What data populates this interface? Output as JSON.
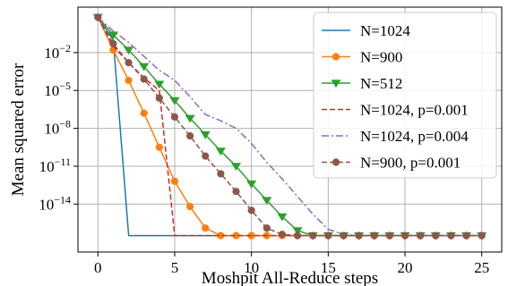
{
  "chart_data": {
    "type": "line",
    "xlabel": "Moshpit All-Reduce steps",
    "ylabel": "Mean squared error",
    "xscale": "linear",
    "yscale": "log",
    "xlim": [
      -1.3,
      26.3
    ],
    "ylim_log10": [
      -17.8,
      1.6
    ],
    "x_ticks": [
      0,
      5,
      10,
      15,
      20,
      25
    ],
    "x_tick_labels": [
      "0",
      "5",
      "10",
      "15",
      "20",
      "25"
    ],
    "y_ticks_log10": [
      -2,
      -5,
      -8,
      -11,
      -14
    ],
    "y_tick_labels": [
      {
        "base": "10",
        "exp": "−2"
      },
      {
        "base": "10",
        "exp": "−5"
      },
      {
        "base": "10",
        "exp": "−8"
      },
      {
        "base": "10",
        "exp": "−11"
      },
      {
        "base": "10",
        "exp": "−14"
      }
    ],
    "grid": true,
    "legend_position": "upper right",
    "series": [
      {
        "name": "N=1024",
        "color": "#1f77b4",
        "dash": "solid",
        "marker": "none",
        "x": [
          0,
          1,
          2,
          3,
          4,
          5,
          6,
          7,
          8,
          9,
          10,
          11,
          12,
          13,
          14,
          15,
          16,
          17,
          18,
          19,
          20,
          21,
          22,
          23,
          24,
          25
        ],
        "y_log10": [
          0.8,
          -1.0,
          -16.5,
          -16.5,
          -16.5,
          -16.5,
          -16.5,
          -16.5,
          -16.5,
          -16.5,
          -16.5,
          -16.5,
          -16.5,
          -16.5,
          -16.5,
          -16.5,
          -16.5,
          -16.5,
          -16.5,
          -16.5,
          -16.5,
          -16.5,
          -16.5,
          -16.5,
          -16.5,
          -16.5
        ]
      },
      {
        "name": "N=900",
        "color": "#ff7f0e",
        "dash": "solid",
        "marker": "circle",
        "x": [
          0,
          1,
          2,
          3,
          4,
          5,
          6,
          7,
          8,
          9,
          10,
          11,
          12,
          13,
          14,
          15,
          16,
          17,
          18,
          19,
          20,
          21,
          22,
          23,
          24,
          25
        ],
        "y_log10": [
          0.8,
          -1.8,
          -4.2,
          -6.8,
          -9.5,
          -12.2,
          -14.2,
          -15.9,
          -16.5,
          -16.5,
          -16.5,
          -16.5,
          -16.5,
          -16.5,
          -16.5,
          -16.5,
          -16.5,
          -16.5,
          -16.5,
          -16.5,
          -16.5,
          -16.5,
          -16.5,
          -16.5,
          -16.5,
          -16.5
        ]
      },
      {
        "name": "N=512",
        "color": "#2ca02c",
        "dash": "solid",
        "marker": "triangle-down",
        "x": [
          0,
          1,
          2,
          3,
          4,
          5,
          6,
          7,
          8,
          9,
          10,
          11,
          12,
          13,
          14,
          15,
          16,
          17,
          18,
          19,
          20,
          21,
          22,
          23,
          24,
          25
        ],
        "y_log10": [
          0.8,
          -0.6,
          -1.8,
          -3.1,
          -4.5,
          -5.8,
          -7.2,
          -8.5,
          -9.8,
          -11.0,
          -12.4,
          -13.7,
          -15.0,
          -16.1,
          -16.5,
          -16.5,
          -16.5,
          -16.5,
          -16.5,
          -16.5,
          -16.5,
          -16.5,
          -16.5,
          -16.5,
          -16.5,
          -16.5
        ]
      },
      {
        "name": "N=1024, p=0.001",
        "color": "#d62728",
        "dash": "dashed",
        "marker": "none",
        "x": [
          0,
          1,
          2,
          3,
          4,
          5,
          6,
          7,
          8,
          9,
          10,
          11,
          12,
          13,
          14,
          15,
          16,
          17,
          18,
          19,
          20,
          21,
          22,
          23,
          24,
          25
        ],
        "y_log10": [
          0.8,
          -1.5,
          -2.8,
          -4.0,
          -5.0,
          -16.5,
          -16.5,
          -16.5,
          -16.5,
          -16.5,
          -16.5,
          -16.5,
          -16.5,
          -16.5,
          -16.5,
          -16.5,
          -16.5,
          -16.5,
          -16.5,
          -16.5,
          -16.5,
          -16.5,
          -16.5,
          -16.5,
          -16.5,
          -16.5
        ]
      },
      {
        "name": "N=1024, p=0.004",
        "color": "#9467bd",
        "dash": "dashdot",
        "marker": "none",
        "x": [
          0,
          1,
          2,
          3,
          4,
          5,
          6,
          7,
          8,
          9,
          10,
          11,
          12,
          13,
          14,
          15,
          16,
          17,
          18,
          19,
          20,
          21,
          22,
          23,
          24,
          25
        ],
        "y_log10": [
          0.8,
          -0.3,
          -1.2,
          -2.3,
          -3.4,
          -4.2,
          -5.5,
          -6.9,
          -7.4,
          -8.0,
          -9.2,
          -10.7,
          -12.0,
          -13.4,
          -14.8,
          -16.0,
          -16.4,
          -16.5,
          -16.5,
          -16.5,
          -16.5,
          -16.5,
          -16.5,
          -16.5,
          -16.5,
          -16.5
        ]
      },
      {
        "name": "N=900, p=0.001",
        "color": "#8c564b",
        "dash": "dashed",
        "marker": "circle",
        "x": [
          0,
          1,
          2,
          3,
          4,
          5,
          6,
          7,
          8,
          9,
          10,
          11,
          12,
          13,
          14,
          15,
          16,
          17,
          18,
          19,
          20,
          21,
          22,
          23,
          24,
          25
        ],
        "y_log10": [
          0.8,
          -1.3,
          -2.8,
          -4.1,
          -5.6,
          -7.1,
          -8.6,
          -10.2,
          -11.6,
          -13.0,
          -14.5,
          -15.9,
          -16.4,
          -16.5,
          -16.5,
          -16.5,
          -16.5,
          -16.5,
          -16.5,
          -16.5,
          -16.5,
          -16.5,
          -16.5,
          -16.5,
          -16.5,
          -16.5
        ]
      }
    ]
  }
}
